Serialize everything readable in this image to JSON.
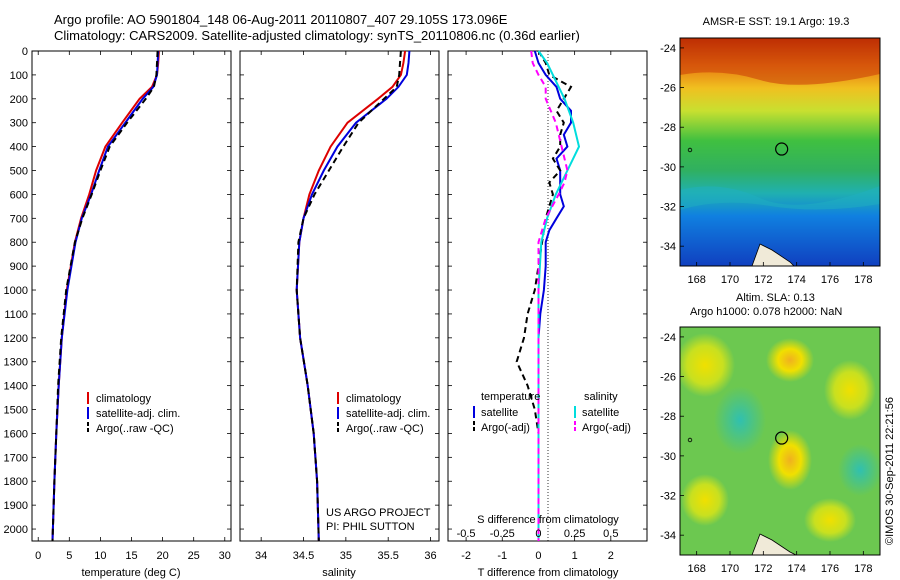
{
  "header": {
    "line1": "Argo profile: AO 5901804_148 06-Aug-2011 20110807_407 29.105S 173.096E",
    "line2": "Climatology: CARS2009. Satellite-adjusted climatology: synTS_20110806.nc (0.36d earlier)"
  },
  "colors": {
    "clim": "#dd0000",
    "sat": "#0000dd",
    "argo": "#000000",
    "sal_sat": "#00dddd",
    "sal_argo": "#ff00ff"
  },
  "chart_data": [
    {
      "type": "line",
      "xlabel": "temperature (deg C)",
      "ylabel": "",
      "xlim": [
        -1,
        31
      ],
      "ylim": [
        2050,
        0
      ],
      "xticks": [
        0,
        5,
        10,
        15,
        20,
        25,
        30
      ],
      "yticks": [
        0,
        100,
        200,
        300,
        400,
        500,
        600,
        700,
        800,
        900,
        1000,
        1100,
        1200,
        1300,
        1400,
        1500,
        1600,
        1700,
        1800,
        1900,
        2000
      ],
      "legend": [
        "climatology",
        "satellite-adj. clim.",
        "Argo(..raw -QC)"
      ],
      "series": [
        {
          "name": "climatology",
          "depth": [
            0,
            50,
            100,
            150,
            200,
            300,
            400,
            500,
            600,
            700,
            800,
            1000,
            1200,
            1400,
            1600,
            1800,
            2050
          ],
          "values": [
            19.4,
            19.3,
            19.1,
            18.3,
            16.3,
            13.5,
            10.8,
            9.3,
            8.2,
            6.9,
            5.9,
            4.6,
            3.8,
            3.3,
            2.9,
            2.6,
            2.3
          ]
        },
        {
          "name": "satellite-adj. clim.",
          "depth": [
            0,
            50,
            100,
            150,
            200,
            300,
            400,
            500,
            600,
            700,
            800,
            1000,
            1200,
            1400,
            1600,
            1800,
            2050
          ],
          "values": [
            19.3,
            19.2,
            19.1,
            18.5,
            16.8,
            14.0,
            11.2,
            9.8,
            8.5,
            7.0,
            6.0,
            4.7,
            3.8,
            3.3,
            2.9,
            2.6,
            2.3
          ]
        },
        {
          "name": "Argo(..raw -QC)",
          "depth": [
            0,
            50,
            100,
            150,
            200,
            300,
            400,
            500,
            600,
            700,
            800,
            1000,
            1200,
            1400,
            1600,
            1800,
            2050
          ],
          "values": [
            19.2,
            19.1,
            19.0,
            18.6,
            17.3,
            14.3,
            11.5,
            10.0,
            8.6,
            7.1,
            5.9,
            4.5,
            3.7,
            3.2,
            2.9,
            2.6,
            2.3
          ]
        }
      ]
    },
    {
      "type": "line",
      "xlabel": "salinity",
      "xlim": [
        33.75,
        36.1
      ],
      "ylim": [
        2050,
        0
      ],
      "xticks": [
        34,
        34.5,
        35,
        35.5,
        36
      ],
      "legend": [
        "climatology",
        "satellite-adj. clim.",
        "Argo(..raw -QC)"
      ],
      "annotation": [
        "US ARGO PROJECT",
        "PI: PHIL SUTTON"
      ],
      "series": [
        {
          "name": "climatology",
          "depth": [
            0,
            50,
            100,
            150,
            200,
            300,
            400,
            500,
            600,
            700,
            800,
            1000,
            1200,
            1400,
            1600,
            1800,
            2050
          ],
          "values": [
            35.7,
            35.68,
            35.65,
            35.55,
            35.38,
            35.02,
            34.82,
            34.68,
            34.57,
            34.5,
            34.45,
            34.42,
            34.46,
            34.55,
            34.62,
            34.66,
            34.68
          ]
        },
        {
          "name": "satellite-adj. clim.",
          "depth": [
            0,
            50,
            100,
            150,
            200,
            300,
            400,
            500,
            600,
            700,
            800,
            1000,
            1200,
            1400,
            1600,
            1800,
            2050
          ],
          "values": [
            35.75,
            35.74,
            35.72,
            35.62,
            35.48,
            35.12,
            34.9,
            34.74,
            34.6,
            34.5,
            34.45,
            34.42,
            34.46,
            34.55,
            34.62,
            34.66,
            34.68
          ]
        },
        {
          "name": "Argo(..raw -QC)",
          "depth": [
            0,
            50,
            100,
            150,
            200,
            300,
            400,
            500,
            600,
            700,
            800,
            1000,
            1200,
            1400,
            1600,
            1800,
            2050
          ],
          "values": [
            35.65,
            35.64,
            35.63,
            35.6,
            35.45,
            35.15,
            34.97,
            34.8,
            34.63,
            34.5,
            34.44,
            34.42,
            34.46,
            34.55,
            34.62,
            34.66,
            34.68
          ]
        }
      ]
    },
    {
      "type": "line",
      "xlabel": "T difference from climatology",
      "xlabel_top": "S difference from climatology",
      "xlim": [
        -2.5,
        3.0
      ],
      "ylim": [
        2050,
        0
      ],
      "xticks": [
        -2,
        -1,
        0,
        1,
        2
      ],
      "xticks_s": [
        "-0.5",
        "-0.25",
        "0",
        "0.25",
        "0.5"
      ],
      "legend_titles": [
        "temperature",
        "salinity"
      ],
      "legend": [
        "satellite",
        "Argo(-adj)",
        "satellite",
        "Argo(-adj)"
      ],
      "series": [
        {
          "name": "satellite",
          "depth": [
            0,
            50,
            100,
            150,
            200,
            250,
            300,
            350,
            400,
            450,
            500,
            550,
            600,
            650,
            700,
            750,
            800,
            900,
            1000,
            1100,
            1200,
            1400,
            1600,
            1800,
            2050
          ],
          "values": [
            -0.1,
            0.0,
            0.2,
            0.5,
            0.6,
            0.9,
            0.9,
            0.7,
            0.8,
            0.5,
            0.6,
            0.6,
            0.6,
            0.7,
            0.5,
            0.3,
            0.2,
            0.2,
            0.15,
            0.05,
            0.0,
            0.0,
            0.0,
            0.0,
            0.0
          ]
        },
        {
          "name": "Argo(-adj)",
          "depth": [
            0,
            50,
            100,
            150,
            200,
            250,
            300,
            350,
            400,
            450,
            500,
            550,
            600,
            700,
            800,
            900,
            1000,
            1100,
            1200,
            1300,
            1400,
            1500,
            1600,
            1800,
            2050
          ],
          "values": [
            0.0,
            0.2,
            0.3,
            0.9,
            0.7,
            0.5,
            0.7,
            0.6,
            0.6,
            0.4,
            0.6,
            0.3,
            0.4,
            0.2,
            0.1,
            0.0,
            -0.1,
            -0.3,
            -0.4,
            -0.6,
            -0.3,
            -0.1,
            0.0,
            0.0,
            0.0
          ]
        },
        {
          "name": "satellite",
          "depth": [
            0,
            50,
            100,
            150,
            200,
            300,
            400,
            500,
            600,
            700,
            800,
            900,
            1000,
            1200,
            1400,
            1600,
            1800,
            2050
          ],
          "values": [
            0.0,
            0.06,
            0.1,
            0.14,
            0.18,
            0.24,
            0.28,
            0.2,
            0.12,
            0.06,
            0.02,
            0.01,
            0.0,
            0.0,
            0.0,
            0.0,
            0.0,
            0.0
          ]
        },
        {
          "name": "Argo(-adj)",
          "depth": [
            0,
            50,
            100,
            150,
            200,
            300,
            400,
            500,
            550,
            600,
            700,
            800,
            1000,
            1200,
            1400,
            1600,
            1800,
            2050
          ],
          "values": [
            -0.05,
            -0.04,
            0.0,
            0.05,
            0.05,
            0.12,
            0.16,
            0.2,
            0.18,
            0.14,
            0.05,
            0.0,
            0.0,
            0.0,
            0.0,
            0.0,
            0.0,
            0.0
          ]
        }
      ]
    },
    {
      "type": "heatmap",
      "title": "AMSR-E SST: 19.1  Argo: 19.3",
      "xlim": [
        167,
        179
      ],
      "ylim": [
        -35,
        -23.5
      ],
      "xticks": [
        168,
        170,
        172,
        174,
        176,
        178
      ],
      "yticks": [
        -24,
        -26,
        -28,
        -30,
        -32,
        -34
      ],
      "argo_position": [
        173.1,
        -29.1
      ]
    },
    {
      "type": "heatmap",
      "title": "Altim. SLA: 0.13",
      "subtitle": "Argo h1000: 0.078 h2000: NaN",
      "xlim": [
        167,
        179
      ],
      "ylim": [
        -35,
        -23.5
      ],
      "xticks": [
        168,
        170,
        172,
        174,
        176,
        178
      ],
      "yticks": [
        -24,
        -26,
        -28,
        -30,
        -32,
        -34
      ],
      "argo_position": [
        173.1,
        -29.1
      ]
    }
  ],
  "footer": {
    "stamp": "©IMOS 30-Sep-2011 22:21:56"
  }
}
